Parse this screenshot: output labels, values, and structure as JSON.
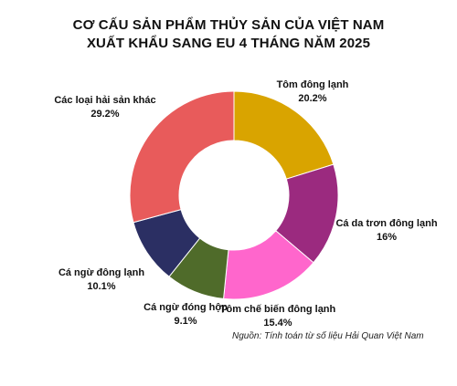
{
  "title": [
    "CƠ CẤU SẢN PHẨM  THỦY SẢN CỦA VIỆT NAM",
    "XUẤT KHẨU SANG EU  4 THÁNG NĂM 2025"
  ],
  "source": "Nguồn: Tính toán từ số liệu Hải Quan Việt Nam",
  "chart_data": {
    "type": "pie",
    "title": "CƠ CẤU SẢN PHẨM  THỦY SẢN CỦA VIỆT NAM XUẤT KHẨU SANG EU  4 THÁNG NĂM 2025",
    "unit": "%",
    "slices": [
      {
        "name": "Tôm đông lạnh",
        "value": 20.2,
        "label": "20.2%",
        "color": "#d9a400"
      },
      {
        "name": "Cá da trơn đông lạnh",
        "value": 16,
        "label": "16%",
        "color": "#9b2a7f"
      },
      {
        "name": "Tôm chế biến đông lạnh",
        "value": 15.4,
        "label": "15.4%",
        "color": "#ff66cc"
      },
      {
        "name": "Cá ngừ đóng hộp",
        "value": 9.1,
        "label": "9.1%",
        "color": "#4f6b2a"
      },
      {
        "name": "Cá ngừ đông lạnh",
        "value": 10.1,
        "label": "10.1%",
        "color": "#2b2f63"
      },
      {
        "name": "Các loại hải sản khác",
        "value": 29.2,
        "label": "29.2%",
        "color": "#e85b5b"
      }
    ]
  }
}
